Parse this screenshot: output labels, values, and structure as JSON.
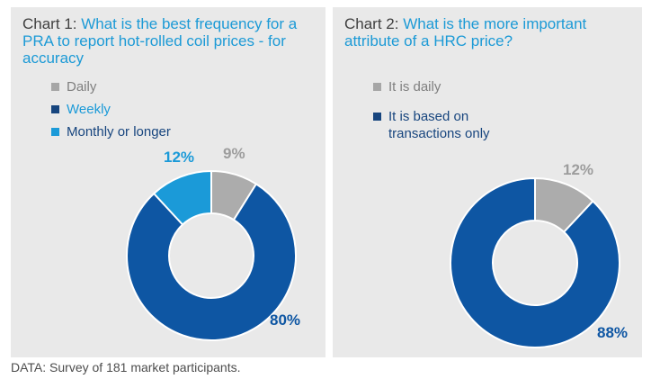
{
  "colors": {
    "panel_background": "#E9E9E9",
    "heading_text": "#404040",
    "accent_blue": "#1C9AD6",
    "dark_blue": "#0E56A3",
    "navy": "#17457E",
    "slice_gray": "#ACACAC",
    "footer_text": "#4D4D4D"
  },
  "footer": {
    "source": "DATA: Survey of 181 market participants."
  },
  "chart_data": [
    {
      "type": "pie",
      "subtype": "donut",
      "title_prefix": "Chart 1: ",
      "title": "What is the best frequency for a PRA to report hot-rolled coil prices - for accuracy",
      "title_color": "#1C9AD6",
      "unit": "percent",
      "start_angle_deg": -90,
      "direction": "clockwise",
      "donut_hole_ratio": 0.5,
      "legend_position": "top-left",
      "slices": [
        {
          "name": "Daily",
          "value": 9,
          "data_label": "9%",
          "color": "#ACACAC",
          "label_color": "#9D9D9D"
        },
        {
          "name": "Weekly",
          "value": 80,
          "data_label": "80%",
          "color": "#0E56A3",
          "label_color": "#0E56A3"
        },
        {
          "name": "Monthly or longer",
          "value": 12,
          "data_label": "12%",
          "color": "#1B9AD8",
          "label_color": "#1B9AD8"
        }
      ],
      "legend": [
        {
          "label": "Daily",
          "swatch": "#A6A6A6",
          "text_color": "#7F7F7F"
        },
        {
          "label": "Weekly",
          "swatch": "#17457E",
          "text_color": "#1B9AD8"
        },
        {
          "label": "Monthly or longer",
          "swatch": "#1B9AD8",
          "text_color": "#17457E"
        }
      ]
    },
    {
      "type": "pie",
      "subtype": "donut",
      "title_prefix": "Chart 2: ",
      "title": "What is the more important attribute of a HRC price?",
      "title_color": "#1C9AD6",
      "unit": "percent",
      "start_angle_deg": -90,
      "direction": "clockwise",
      "donut_hole_ratio": 0.5,
      "legend_position": "top-left",
      "slices": [
        {
          "name": "It is daily",
          "value": 12,
          "data_label": "12%",
          "color": "#ACACAC",
          "label_color": "#9D9D9D"
        },
        {
          "name": "It is based on transactions only",
          "value": 88,
          "data_label": "88%",
          "color": "#0E56A3",
          "label_color": "#0E56A3"
        }
      ],
      "legend": [
        {
          "label": "It is daily",
          "swatch": "#A6A6A6",
          "text_color": "#7F7F7F"
        },
        {
          "label": "It is based on transactions only",
          "swatch": "#17457E",
          "text_color": "#17457E"
        }
      ]
    }
  ]
}
